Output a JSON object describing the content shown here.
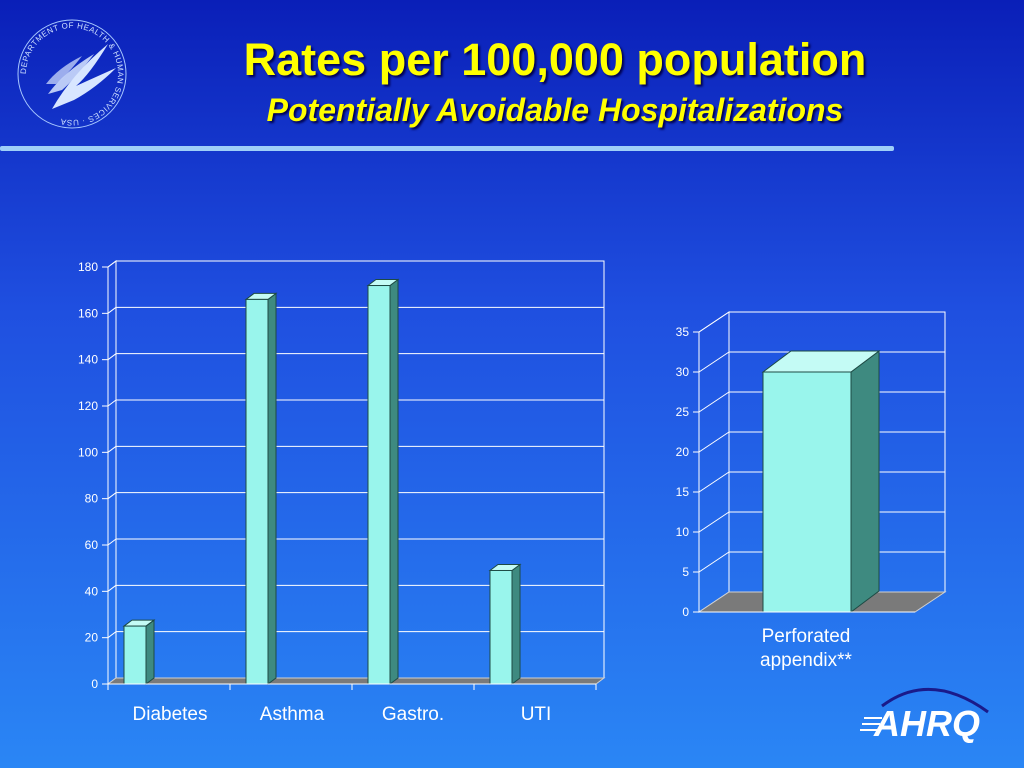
{
  "slide": {
    "title": "Rates per 100,000 population",
    "subtitle": "Potentially Avoidable Hospitalizations",
    "logo_text": "AHRQ",
    "seal_text": "DEPARTMENT OF HEALTH & HUMAN SERVICES · USA",
    "colors": {
      "title": "#ffff00",
      "bar_front": "#99f5ec",
      "bar_side": "#3e8a80",
      "bar_top": "#c4fbf5",
      "floor": "#7a7a7a"
    }
  },
  "chart_data": [
    {
      "type": "bar",
      "categories": [
        "Diabetes",
        "Asthma",
        "Gastro.",
        "UTI"
      ],
      "values": [
        25,
        166,
        172,
        49
      ],
      "ylim": [
        0,
        180
      ],
      "yticks": [
        0,
        20,
        40,
        60,
        80,
        100,
        120,
        140,
        160,
        180
      ],
      "grid": true,
      "three_d": true
    },
    {
      "type": "bar",
      "categories": [
        "Perforated appendix**"
      ],
      "category_lines": [
        "Perforated",
        "appendix**"
      ],
      "values": [
        30
      ],
      "ylim": [
        0,
        35
      ],
      "yticks": [
        0,
        5,
        10,
        15,
        20,
        25,
        30,
        35
      ],
      "grid": true,
      "three_d": true
    }
  ]
}
